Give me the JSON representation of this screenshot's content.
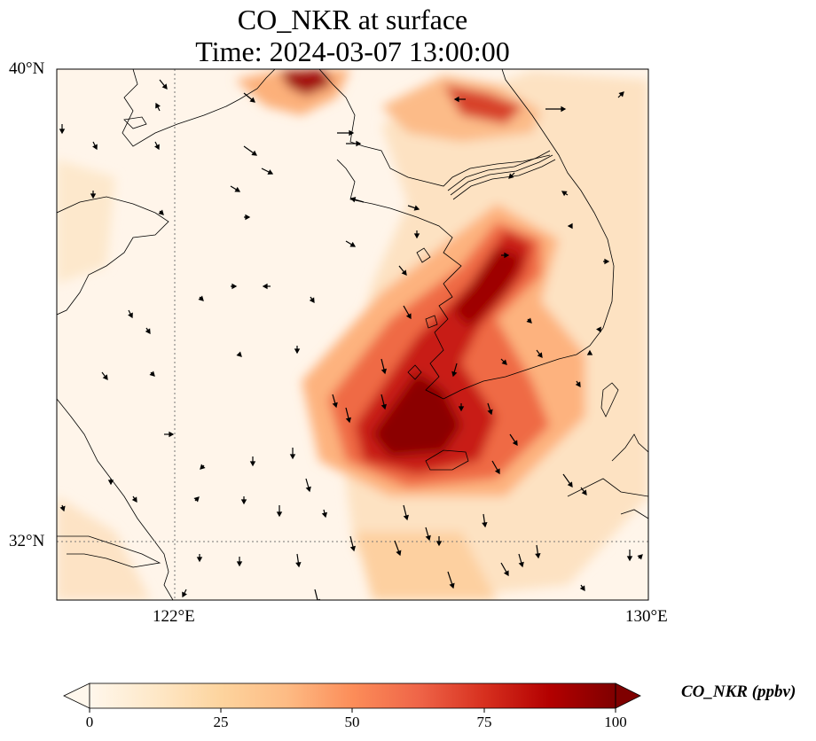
{
  "title": {
    "line1": "CO_NKR at surface",
    "line2": "Time: 2024-03-07 13:00:00"
  },
  "map": {
    "variable": "CO_NKR",
    "level": "surface",
    "time": "2024-03-07 13:00:00",
    "lon_range": [
      120,
      130
    ],
    "lat_range": [
      31,
      40
    ],
    "gridlines": {
      "lon": [
        122
      ],
      "lat": [
        32
      ],
      "style": "dotted"
    },
    "lon_ticks": [
      "122°E",
      "130°E"
    ],
    "lat_ticks": [
      "40°N",
      "32°N"
    ],
    "features": [
      "coastlines",
      "country borders",
      "wind vectors"
    ],
    "plume_core_max_ppbv": 100
  },
  "colorbar": {
    "label": "CO_NKR (ppbv)",
    "min": 0,
    "max": 100,
    "ticks": [
      "0",
      "25",
      "50",
      "75",
      "100"
    ],
    "extend": "both",
    "colormap": "OrRd",
    "colors": [
      "#fff7ec",
      "#fee8c8",
      "#fdd49e",
      "#fdbb84",
      "#fc8d59",
      "#ef6548",
      "#d7301f",
      "#b30000",
      "#7f0000"
    ]
  }
}
